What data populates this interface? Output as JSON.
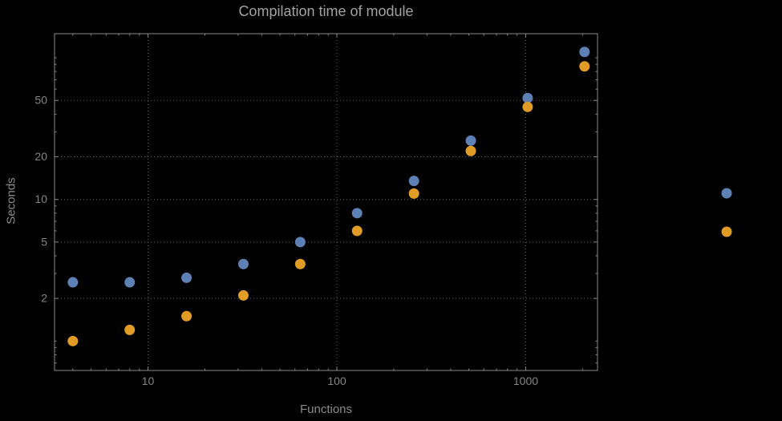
{
  "page": {
    "background": "#000000"
  },
  "chart_data": {
    "type": "scatter",
    "title": "Compilation time of module",
    "xlabel": "Functions",
    "ylabel": "Seconds",
    "x_scale": "log",
    "y_scale": "log",
    "xlim": [
      3.2,
      2400
    ],
    "ylim": [
      0.62,
      148
    ],
    "grid": "dotted major gridlines",
    "x_ticks": [
      {
        "value": 10,
        "label": "10"
      },
      {
        "value": 100,
        "label": "100"
      },
      {
        "value": 1000,
        "label": "1000"
      }
    ],
    "y_ticks": [
      {
        "value": 2,
        "label": "2"
      },
      {
        "value": 5,
        "label": "5"
      },
      {
        "value": 10,
        "label": "10"
      },
      {
        "value": 20,
        "label": "20"
      },
      {
        "value": 50,
        "label": "50"
      }
    ],
    "x": [
      4,
      8,
      16,
      32,
      64,
      128,
      256,
      512,
      1024,
      2048
    ],
    "series": [
      {
        "name": "blue-series",
        "label": "",
        "color": "#5e81b5",
        "values": [
          2.6,
          2.6,
          2.8,
          3.5,
          5.0,
          8.0,
          13.5,
          26,
          52,
          110
        ]
      },
      {
        "name": "orange-series",
        "label": "",
        "color": "#e09c24",
        "values": [
          1.0,
          1.2,
          1.5,
          2.1,
          3.5,
          6.0,
          11,
          22,
          45,
          87
        ]
      }
    ],
    "legend": {
      "position": "right-outside",
      "entries": [
        {
          "color": "#5e81b5",
          "label": ""
        },
        {
          "color": "#e09c24",
          "label": ""
        }
      ]
    }
  },
  "style": {
    "frame_color": "#878787",
    "grid_color": "#5f5f5f",
    "tick_label_color": "#848484",
    "marker_radius": 6.5
  }
}
